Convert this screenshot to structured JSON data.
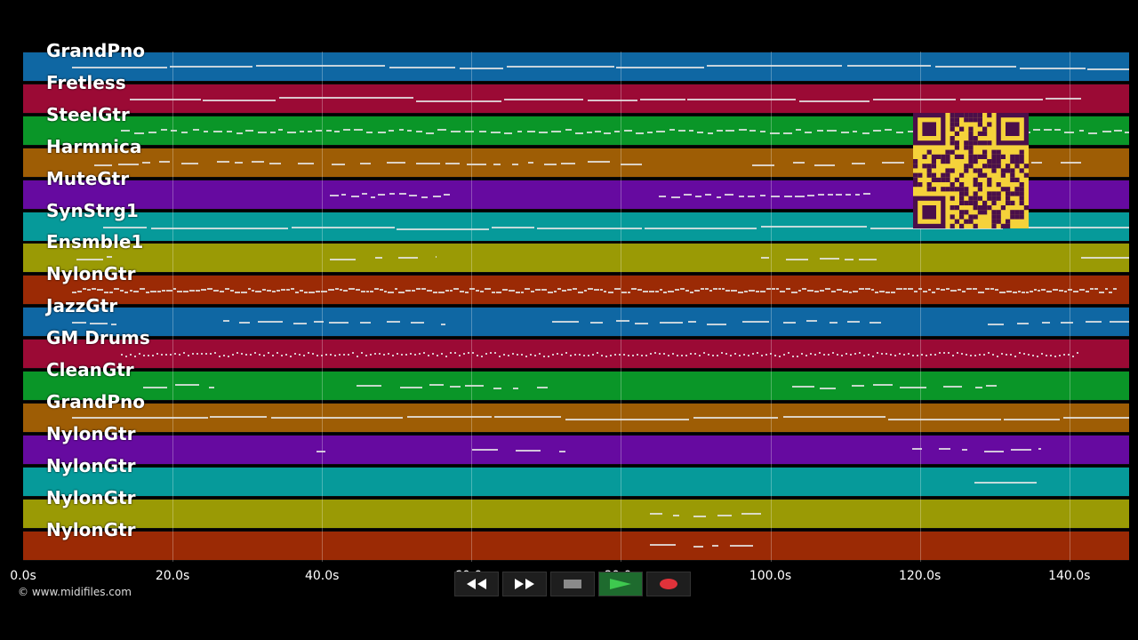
{
  "tracks": [
    {
      "name": "GrandPno",
      "color": "#0f67a3"
    },
    {
      "name": "Fretless",
      "color": "#9b0a35"
    },
    {
      "name": "SteelGtr",
      "color": "#0a9628"
    },
    {
      "name": "Harmnica",
      "color": "#9e5d05"
    },
    {
      "name": "MuteGtr",
      "color": "#660aa0"
    },
    {
      "name": "SynStrg1",
      "color": "#069a9a"
    },
    {
      "name": "Ensmble1",
      "color": "#9a9a05"
    },
    {
      "name": "NylonGtr",
      "color": "#9b2a05"
    },
    {
      "name": "JazzGtr",
      "color": "#0f67a3"
    },
    {
      "name": "GM Drums",
      "color": "#9b0a35"
    },
    {
      "name": "CleanGtr",
      "color": "#0a9628"
    },
    {
      "name": "GrandPno",
      "color": "#9e5d05"
    },
    {
      "name": "NylonGtr",
      "color": "#660aa0"
    },
    {
      "name": "NylonGtr",
      "color": "#069a9a"
    },
    {
      "name": "NylonGtr",
      "color": "#9a9a05"
    },
    {
      "name": "NylonGtr",
      "color": "#9b2a05"
    }
  ],
  "time_axis": {
    "ticks": [
      "0.0s",
      "20.0s",
      "40.0s",
      "60.0s",
      "80.0s",
      "100.0s",
      "120.0s",
      "140.0s"
    ],
    "tick_values": [
      0,
      20,
      40,
      60,
      80,
      100,
      120,
      140
    ],
    "max": 148
  },
  "copyright": "© www.midifiles.com",
  "transport": {
    "rewind_icon": "rewind-icon",
    "fast_forward_icon": "fast-forward-icon",
    "stop_icon": "stop-icon",
    "play_icon": "play-icon",
    "record_icon": "record-icon"
  },
  "colors": {
    "record": "#e0323a",
    "play": "#3ec94f",
    "stop": "#8a8a8a",
    "qr_bg": "#f5d23a",
    "qr_fg": "#4a0f4a"
  }
}
